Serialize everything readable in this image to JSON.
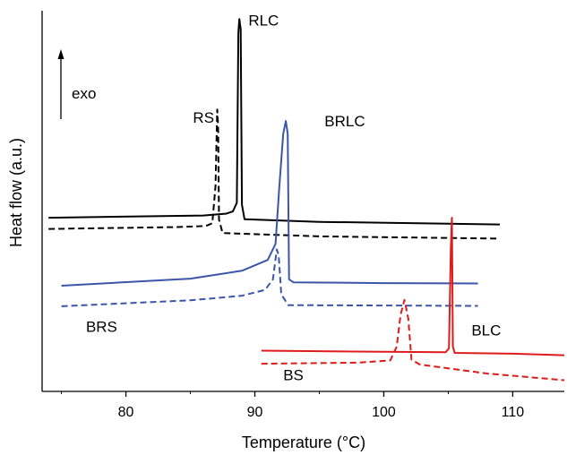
{
  "chart_data": {
    "type": "line",
    "xlabel": "Temperature (°C)",
    "ylabel": "Heat flow (a.u.)",
    "xlim": [
      73.5,
      114
    ],
    "ylim": [
      0,
      100
    ],
    "x_ticks": [
      80,
      90,
      100,
      110
    ],
    "x_tick_labels": [
      "80",
      "90",
      "100",
      "110"
    ],
    "y_ticks_shown": false,
    "grid": false,
    "exo_label": "exo",
    "series": [
      {
        "name": "RLC",
        "color": "#000000",
        "dash": "solid",
        "label_at": [
          89.5,
          98
        ],
        "points": [
          [
            74,
            46.5
          ],
          [
            86,
            47.1
          ],
          [
            87.8,
            47.6
          ],
          [
            88.3,
            48.2
          ],
          [
            88.6,
            50.5
          ],
          [
            88.72,
            96
          ],
          [
            88.8,
            99.7
          ],
          [
            88.9,
            97
          ],
          [
            89.0,
            50
          ],
          [
            89.2,
            46.1
          ],
          [
            95,
            45.4
          ],
          [
            109,
            44.7
          ]
        ]
      },
      {
        "name": "RS",
        "color": "#000000",
        "dash": "dashed",
        "label_at": [
          85.2,
          72
        ],
        "points": [
          [
            74,
            43.5
          ],
          [
            84,
            44.0
          ],
          [
            86.2,
            44.3
          ],
          [
            86.7,
            45.0
          ],
          [
            86.95,
            55
          ],
          [
            87.08,
            75.5
          ],
          [
            87.15,
            71
          ],
          [
            87.22,
            46
          ],
          [
            87.5,
            42.4
          ],
          [
            95,
            41.5
          ],
          [
            109,
            40.9
          ]
        ]
      },
      {
        "name": "BRLC",
        "color": "#3b55a9",
        "dash": "solid",
        "label_at": [
          95.4,
          71
        ],
        "points": [
          [
            75,
            28.3
          ],
          [
            85,
            30.2
          ],
          [
            89,
            32.3
          ],
          [
            91,
            35.2
          ],
          [
            91.6,
            39.5
          ],
          [
            91.9,
            55
          ],
          [
            92.2,
            69
          ],
          [
            92.4,
            72.4
          ],
          [
            92.55,
            69
          ],
          [
            92.65,
            30
          ],
          [
            93,
            29.2
          ],
          [
            100,
            29.0
          ],
          [
            107.3,
            28.9
          ]
        ]
      },
      {
        "name": "BRS",
        "color": "#3b55a9",
        "dash": "dashed",
        "label_at": [
          76.9,
          16
        ],
        "points": [
          [
            75,
            22.8
          ],
          [
            85,
            24.4
          ],
          [
            89,
            25.6
          ],
          [
            90.8,
            27.2
          ],
          [
            91.4,
            30
          ],
          [
            91.7,
            38
          ],
          [
            91.85,
            36.5
          ],
          [
            92.05,
            26
          ],
          [
            92.6,
            23.1
          ],
          [
            100,
            23.0
          ],
          [
            107.3,
            22.9
          ]
        ]
      },
      {
        "name": "BLC",
        "color": "#dd1c1c",
        "dash": "solid",
        "label_at": [
          106.8,
          15
        ],
        "points": [
          [
            90.5,
            10.9
          ],
          [
            100,
            10.6
          ],
          [
            104.8,
            10.5
          ],
          [
            105.05,
            11.5
          ],
          [
            105.2,
            38
          ],
          [
            105.28,
            46.5
          ],
          [
            105.36,
            12
          ],
          [
            105.5,
            10.3
          ],
          [
            110,
            10.1
          ],
          [
            114,
            9.7
          ]
        ]
      },
      {
        "name": "BS",
        "color": "#dd1c1c",
        "dash": "dashed",
        "label_at": [
          92.2,
          3
        ],
        "points": [
          [
            90.5,
            7.4
          ],
          [
            98,
            7.7
          ],
          [
            100.5,
            8.3
          ],
          [
            101.0,
            12
          ],
          [
            101.3,
            20.5
          ],
          [
            101.6,
            24.5
          ],
          [
            101.9,
            19.5
          ],
          [
            102.15,
            8.5
          ],
          [
            102.8,
            7.2
          ],
          [
            108,
            4.8
          ],
          [
            114,
            3.0
          ]
        ]
      }
    ]
  }
}
